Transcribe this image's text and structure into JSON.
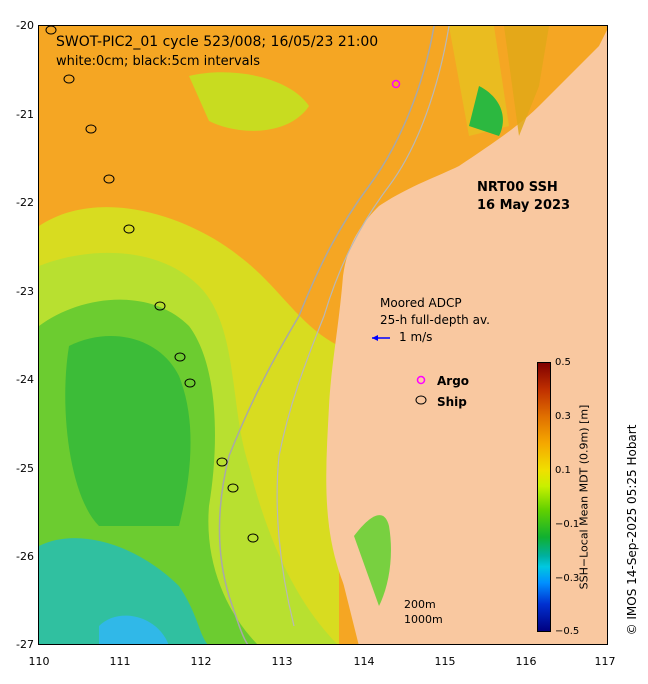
{
  "title": "SWOT-PIC2_01 cycle 523/008; 16/05/23 21:00",
  "subtitle": "white:0cm; black:5cm intervals",
  "product_label": "NRT00 SSH",
  "date_label": "16 May 2023",
  "adcp": {
    "line1": "Moored ADCP",
    "line2": "25-h full-depth av.",
    "vector_label": "1 m/s"
  },
  "legend": {
    "argo": "Argo",
    "ship": "Ship"
  },
  "isobaths": {
    "shallow": "200m",
    "deep": "1000m"
  },
  "axes": {
    "x_ticks": [
      "110",
      "111",
      "112",
      "113",
      "114",
      "115",
      "116",
      "117"
    ],
    "y_ticks": [
      "-20",
      "-21",
      "-22",
      "-23",
      "-24",
      "-25",
      "-26",
      "-27"
    ],
    "lon_range": [
      110,
      117
    ],
    "lat_range": [
      -27,
      -20
    ]
  },
  "colorbar": {
    "label": "SSH−Local Mean MDT (0.9m) [m]",
    "ticks": [
      "0.5",
      "0.3",
      "0.1",
      "−0.1",
      "−0.3",
      "−0.5"
    ],
    "range": [
      -0.5,
      0.5
    ]
  },
  "credit": "© IMOS 14-Sep-2025 05:25 Hobart",
  "colors": {
    "land": "#f9c8a0",
    "isobath": "#a8a8a8",
    "argo_marker": "#ff00ff",
    "vector": "#0000ff"
  }
}
